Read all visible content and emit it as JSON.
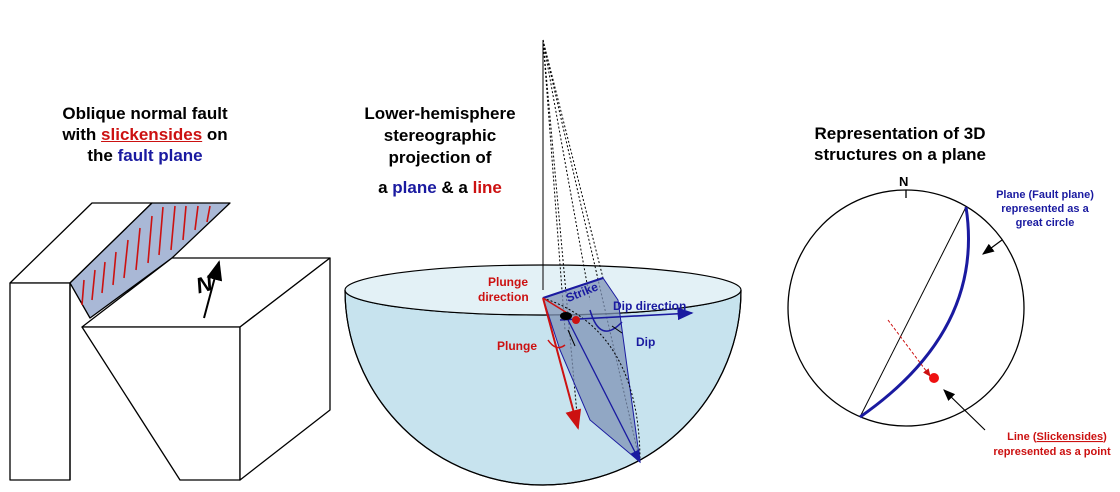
{
  "panel_fault": {
    "title_line1": "Oblique normal fault",
    "title_line2_pre": "with ",
    "title_line2_red": "slickensides",
    "title_line2_post": " on",
    "title_line3_pre": "the ",
    "title_line3_blue": "fault plane",
    "north_label": "N"
  },
  "panel_projection": {
    "title_line1": "Lower-hemisphere",
    "title_line2": "stereographic",
    "title_line3": "projection of",
    "title_line4_pre": "a ",
    "title_line4_blue": "plane",
    "title_line4_mid": " & a ",
    "title_line4_red": "line",
    "labels": {
      "plunge_direction_1": "Plunge",
      "plunge_direction_2": "direction",
      "strike": "Strike",
      "dip_direction": "Dip direction",
      "plunge": "Plunge",
      "dip": "Dip"
    }
  },
  "panel_stereonet": {
    "title_line1": "Representation of 3D",
    "title_line2": "structures on a plane",
    "north_label": "N",
    "plane_label_1": "Plane (Fault plane)",
    "plane_label_2": "represented as a",
    "plane_label_3": "great circle",
    "line_label_1_pre": "Line (",
    "line_label_1_under": "Slickensides",
    "line_label_1_post": ")",
    "line_label_2": "represented as a point"
  },
  "colors": {
    "plane_blue": "#1a1aa0",
    "line_red": "#cc1111",
    "water": "#c7e3ee",
    "fault_fill": "#a9b8d6"
  }
}
